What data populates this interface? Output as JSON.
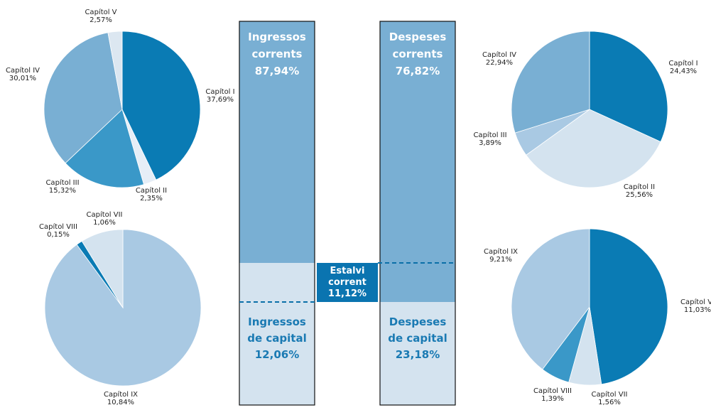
{
  "chart_data": [
    {
      "type": "pie",
      "categories": [
        "Capítol I",
        "Capítol II",
        "Capítol III",
        "Capítol IV",
        "Capítol V"
      ],
      "values": [
        37.69,
        2.35,
        15.32,
        30.01,
        2.57
      ],
      "value_labels": [
        "37,69%",
        "2,35%",
        "15,32%",
        "30,01%",
        "2,57%"
      ],
      "colors": [
        "#0a7bb4",
        "#e6eef7",
        "#3a98c8",
        "#79afd3",
        "#dce7f1"
      ]
    },
    {
      "type": "pie",
      "categories": [
        "Capítol IX",
        "Capítol VIII",
        "Capítol VII"
      ],
      "values": [
        10.84,
        0.15,
        1.06
      ],
      "value_labels": [
        "10,84%",
        "0,15%",
        "1,06%"
      ],
      "colors": [
        "#a9c9e3",
        "#0a7bb4",
        "#d4e3ef"
      ]
    },
    {
      "type": "pie",
      "categories": [
        "Capítol I",
        "Capítol II",
        "Capítol III",
        "Capítol IV"
      ],
      "values": [
        24.43,
        25.56,
        3.89,
        22.94
      ],
      "value_labels": [
        "24,43%",
        "25,56%",
        "3,89%",
        "22,94%"
      ],
      "colors": [
        "#0a7bb4",
        "#d4e3ef",
        "#a9c9e3",
        "#79afd3"
      ]
    },
    {
      "type": "pie",
      "categories": [
        "Capítol VI",
        "Capítol VII",
        "Capítol VIII",
        "Capítol IX"
      ],
      "values": [
        11.03,
        1.56,
        1.39,
        9.21
      ],
      "value_labels": [
        "11,03%",
        "1,56%",
        "1,39%",
        "9,21%"
      ],
      "colors": [
        "#0a7bb4",
        "#d4e3ef",
        "#3a98c8",
        "#a9c9e3"
      ]
    }
  ],
  "flow": {
    "ingressos_corrents": {
      "lines": [
        "Ingressos",
        "corrents"
      ],
      "label": "87,94%"
    },
    "ingressos_capital": {
      "lines": [
        "Ingressos",
        "de capital"
      ],
      "label": "12,06%"
    },
    "despeses_corrents": {
      "lines": [
        "Despeses",
        "corrents"
      ],
      "label": "76,82%"
    },
    "despeses_capital": {
      "lines": [
        "Despeses",
        "de capital"
      ],
      "label": "23,18%"
    },
    "estalvi": {
      "lines": [
        "Estalvi",
        "corrent"
      ],
      "label": "11,12%"
    }
  }
}
